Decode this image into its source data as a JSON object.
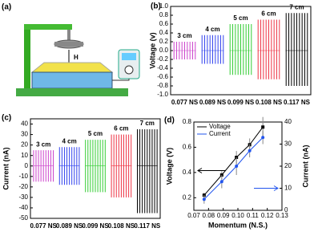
{
  "panels": {
    "a": {
      "label": "(a)",
      "height_label": "H"
    }
  },
  "chart_data": [
    {
      "type": "signal",
      "panel": "(b)",
      "y_label": "Voltage (v)",
      "ylim": [
        -1.0,
        1.0
      ],
      "yticks": [
        {
          "value": -1.0,
          "label": "-1.0"
        },
        -0.8,
        -0.6,
        -0.4,
        -0.2,
        {
          "value": 0,
          "label": "0.0"
        },
        0.2,
        0.4,
        0.6,
        0.8,
        {
          "value": 1.0,
          "label": "1.0"
        }
      ],
      "series": [
        {
          "name": "3 cm",
          "momentum": "0.077 NS",
          "color": "#cc44cc",
          "values": [
            0.2,
            -0.2
          ]
        },
        {
          "name": "4 cm",
          "momentum": "0.089 NS",
          "color": "#3344ee",
          "values": [
            0.35,
            -0.3
          ]
        },
        {
          "name": "5 cm",
          "momentum": "0.099 NS",
          "color": "#33cc33",
          "values": [
            0.6,
            -0.55
          ]
        },
        {
          "name": "6 cm",
          "momentum": "0.108 NS",
          "color": "#ee3344",
          "values": [
            0.7,
            -0.65
          ]
        },
        {
          "name": "7 cm",
          "momentum": "0.117 NS",
          "color": "#000000",
          "values": [
            0.85,
            -0.8
          ]
        }
      ]
    },
    {
      "type": "signal",
      "panel": "(c)",
      "y_label": "Current (nA)",
      "ylim": [
        -50,
        45
      ],
      "yticks": [
        -50,
        -40,
        -30,
        -20,
        -10,
        0,
        10,
        20,
        30,
        40
      ],
      "series": [
        {
          "name": "3 cm",
          "momentum": "0.077 NS",
          "color": "#cc44cc",
          "values": [
            15,
            -15
          ]
        },
        {
          "name": "4 cm",
          "momentum": "0.089 NS",
          "color": "#3344ee",
          "values": [
            18,
            -18
          ]
        },
        {
          "name": "5 cm",
          "momentum": "0.099 NS",
          "color": "#33cc33",
          "values": [
            25,
            -25
          ]
        },
        {
          "name": "6 cm",
          "momentum": "0.108 NS",
          "color": "#ee3344",
          "values": [
            30,
            -30
          ]
        },
        {
          "name": "7 cm",
          "momentum": "0.117 NS",
          "color": "#000000",
          "values": [
            35,
            -45
          ]
        }
      ]
    },
    {
      "type": "line",
      "panel": "(d)",
      "x_label": "Momentum (N.S.)",
      "y_label": "Voltage (V)",
      "y2_label": "Current (nA)",
      "xlim": [
        0.07,
        0.13
      ],
      "xticks": [
        0.07,
        0.08,
        0.09,
        {
          "value": 0.1,
          "label": "0.10"
        },
        0.11,
        0.12,
        0.13
      ],
      "ylim": [
        0.1,
        0.8
      ],
      "yticks": [
        0.2,
        0.4,
        0.6,
        0.8
      ],
      "y2lim": [
        0,
        40
      ],
      "y2ticks": [
        0,
        10,
        20,
        30,
        40
      ],
      "x": [
        0.077,
        0.089,
        0.099,
        0.108,
        0.117
      ],
      "series": [
        {
          "name": "Voltage",
          "color": "#000000",
          "values": [
            0.22,
            0.38,
            0.52,
            0.62,
            0.76
          ],
          "errors": [
            0.02,
            0.03,
            0.05,
            0.05,
            0.08
          ]
        },
        {
          "name": "Current",
          "color": "#2255ee",
          "axis": "y2",
          "values": [
            5,
            13,
            20,
            27,
            33
          ],
          "errors": [
            2,
            3,
            4,
            3,
            3
          ]
        }
      ]
    }
  ]
}
